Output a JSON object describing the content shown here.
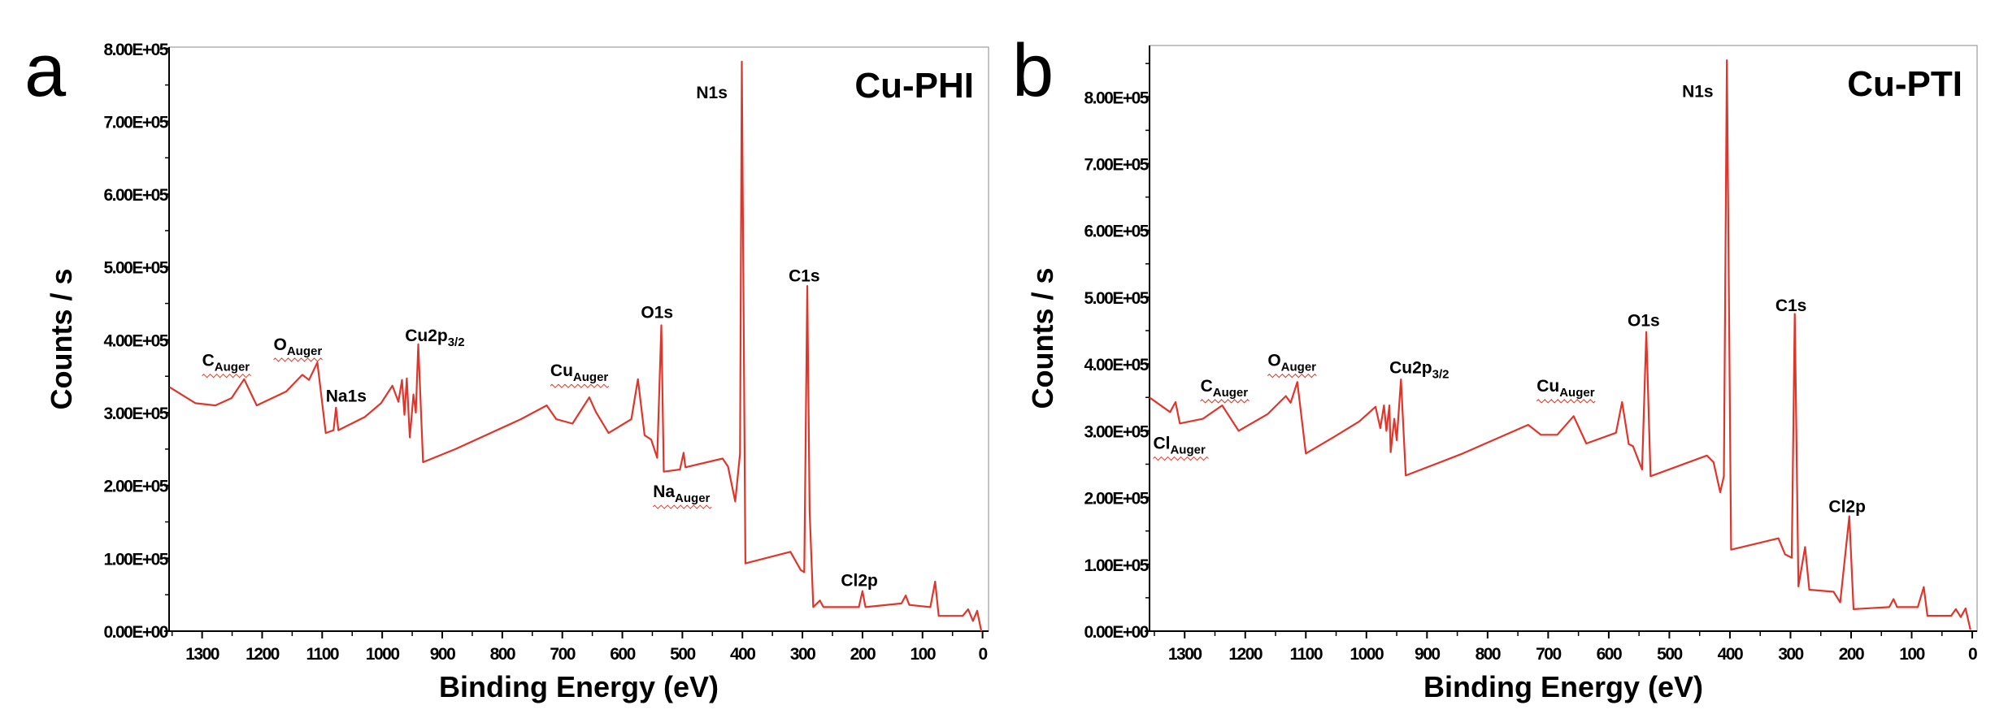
{
  "chart_data": [
    {
      "type": "line",
      "panel_letter": "a",
      "title": "Cu-PHI",
      "xlabel": "Binding Energy (eV)",
      "ylabel": "Counts / s",
      "xlim": [
        1355,
        -10
      ],
      "ylim": [
        0,
        802000
      ],
      "x_reversed": true,
      "xticks": [
        1300,
        1200,
        1100,
        1000,
        900,
        800,
        700,
        600,
        500,
        400,
        300,
        200,
        100,
        0
      ],
      "yticks": [
        0,
        100000,
        200000,
        300000,
        400000,
        500000,
        600000,
        700000,
        800000
      ],
      "ytick_labels": [
        "0.00E+00",
        "1.00E+05",
        "2.00E+05",
        "3.00E+05",
        "4.00E+05",
        "5.00E+05",
        "6.00E+05",
        "7.00E+05",
        "8.00E+05"
      ],
      "grid": false,
      "line_color": "#e0352b",
      "series": [
        {
          "x": [
            1354,
            1311,
            1278,
            1251,
            1230,
            1209,
            1160,
            1133,
            1122,
            1108,
            1094,
            1081,
            1077,
            1073,
            1029,
            1002,
            983,
            973,
            967,
            963,
            959,
            954,
            948,
            944,
            940,
            932,
            878,
            769,
            726,
            710,
            683,
            655,
            644,
            623,
            585,
            574,
            563,
            552,
            542,
            535,
            531,
            504,
            498,
            495,
            433,
            424,
            412,
            404,
            401,
            395,
            320,
            303,
            297,
            292,
            288,
            282,
            271,
            265,
            206,
            200,
            195,
            135,
            128,
            122,
            87,
            79,
            73,
            33,
            24,
            16,
            9,
            2
          ],
          "y": [
            335000,
            313000,
            310000,
            320000,
            346000,
            310000,
            329000,
            352000,
            345000,
            369000,
            272000,
            276000,
            307000,
            276000,
            294000,
            313000,
            337000,
            315000,
            345000,
            297000,
            347000,
            266000,
            325000,
            300000,
            394000,
            232000,
            250000,
            291000,
            310000,
            291000,
            285000,
            321000,
            301000,
            272000,
            291000,
            346000,
            269000,
            263000,
            238000,
            420000,
            219000,
            222000,
            245000,
            225000,
            237000,
            226000,
            178000,
            244000,
            782000,
            93000,
            109000,
            84000,
            81000,
            474000,
            165000,
            33000,
            42000,
            33000,
            33000,
            55000,
            33000,
            38000,
            49000,
            36000,
            33000,
            68000,
            21000,
            21000,
            30000,
            14000,
            28000,
            0
          ]
        }
      ],
      "annotations": [
        {
          "text": "N1s",
          "sub": "",
          "x": 477,
          "y": 732000
        },
        {
          "text": "C1s",
          "sub": "",
          "x": 323,
          "y": 480000
        },
        {
          "text": "O1s",
          "sub": "",
          "x": 569,
          "y": 430000
        },
        {
          "text": "Cu2p",
          "sub": "3/2",
          "x": 962,
          "y": 398000
        },
        {
          "text": "C",
          "sub": "Auger",
          "x": 1300,
          "y": 364000,
          "squiggle": true
        },
        {
          "text": "O",
          "sub": "Auger",
          "x": 1181,
          "y": 386000,
          "squiggle": true
        },
        {
          "text": "Na1s",
          "sub": "",
          "x": 1094,
          "y": 315000
        },
        {
          "text": "Cu",
          "sub": "Auger",
          "x": 720,
          "y": 350000,
          "squiggle": true
        },
        {
          "text": "Na",
          "sub": "Auger",
          "x": 549,
          "y": 184000,
          "squiggle": true
        },
        {
          "text": "Cl2p",
          "sub": "",
          "x": 236,
          "y": 62000
        }
      ]
    },
    {
      "type": "line",
      "panel_letter": "b",
      "title": "Cu-PTI",
      "xlabel": "Binding Energy (eV)",
      "ylabel": "Counts / s",
      "xlim": [
        1358,
        -8
      ],
      "ylim": [
        0,
        877000
      ],
      "x_reversed": true,
      "xticks": [
        1300,
        1200,
        1100,
        1000,
        900,
        800,
        700,
        600,
        500,
        400,
        300,
        200,
        100,
        0
      ],
      "yticks": [
        0,
        100000,
        200000,
        300000,
        400000,
        500000,
        600000,
        700000,
        800000
      ],
      "ytick_labels": [
        "0.00E+00",
        "1.00E+05",
        "2.00E+05",
        "3.00E+05",
        "4.00E+05",
        "5.00E+05",
        "6.00E+05",
        "7.00E+05",
        "8.00E+05"
      ],
      "grid": false,
      "line_color": "#e0352b",
      "series": [
        {
          "x": [
            1358,
            1324,
            1315,
            1308,
            1270,
            1238,
            1211,
            1163,
            1133,
            1125,
            1114,
            1100,
            1055,
            1012,
            985,
            977,
            971,
            967,
            962,
            960,
            954,
            950,
            943,
            935,
            841,
            733,
            712,
            685,
            658,
            637,
            588,
            578,
            567,
            560,
            545,
            538,
            531,
            438,
            427,
            416,
            410,
            405,
            398,
            320,
            309,
            298,
            293,
            287,
            276,
            269,
            229,
            218,
            203,
            196,
            137,
            130,
            124,
            90,
            80,
            74,
            35,
            27,
            19,
            11,
            3
          ],
          "y": [
            350000,
            328000,
            343000,
            311000,
            318000,
            338000,
            300000,
            325000,
            352000,
            342000,
            373000,
            266000,
            290000,
            314000,
            336000,
            304000,
            338000,
            300000,
            338000,
            268000,
            318000,
            286000,
            377000,
            233000,
            266000,
            309000,
            294000,
            294000,
            322000,
            281000,
            297000,
            343000,
            280000,
            277000,
            242000,
            448000,
            232000,
            263000,
            253000,
            208000,
            232000,
            855000,
            122000,
            139000,
            115000,
            110000,
            475000,
            67000,
            126000,
            62000,
            59000,
            43000,
            172000,
            33000,
            36000,
            48000,
            36000,
            36000,
            66000,
            23000,
            23000,
            33000,
            21000,
            34000,
            2000
          ]
        }
      ],
      "annotations": [
        {
          "text": "N1s",
          "sub": "",
          "x": 479,
          "y": 800000
        },
        {
          "text": "C1s",
          "sub": "",
          "x": 325,
          "y": 479000
        },
        {
          "text": "O1s",
          "sub": "",
          "x": 569,
          "y": 457000
        },
        {
          "text": "Cu2p",
          "sub": "3/2",
          "x": 962,
          "y": 386000
        },
        {
          "text": "C",
          "sub": "Auger",
          "x": 1274,
          "y": 359000,
          "squiggle": true
        },
        {
          "text": "O",
          "sub": "Auger",
          "x": 1163,
          "y": 397000,
          "squiggle": true
        },
        {
          "text": "Cu",
          "sub": "Auger",
          "x": 719,
          "y": 359000,
          "squiggle": true
        },
        {
          "text": "Cl",
          "sub": "Auger",
          "x": 1352,
          "y": 273000,
          "squiggle": true
        },
        {
          "text": "Cl2p",
          "sub": "",
          "x": 237,
          "y": 178000
        }
      ]
    }
  ]
}
